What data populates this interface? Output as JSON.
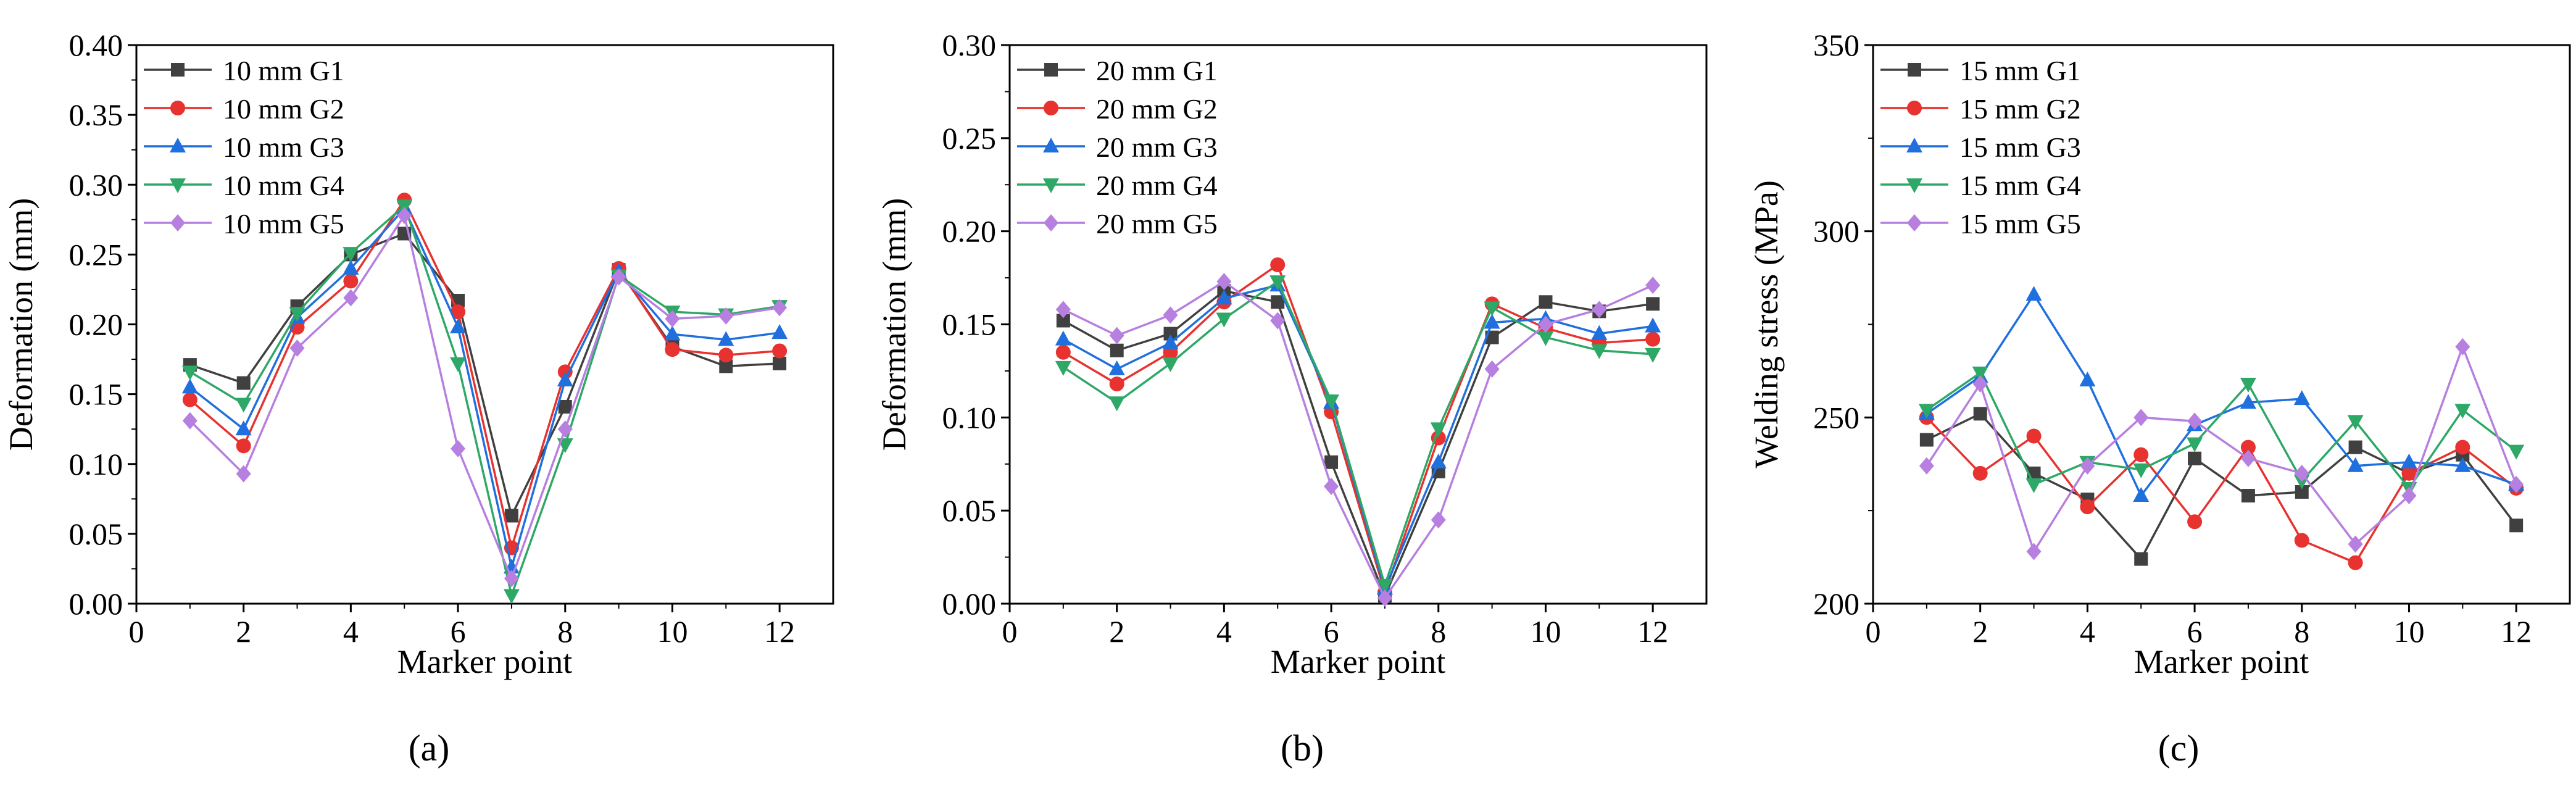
{
  "chart_data": [
    {
      "type": "line",
      "panel_label": "(a)",
      "xlabel": "Marker point",
      "ylabel": "Deformation (mm)",
      "xlim": [
        0,
        13
      ],
      "ylim": [
        0,
        0.4
      ],
      "xticks": [
        0,
        2,
        4,
        6,
        8,
        10,
        12
      ],
      "yticks": [
        0,
        0.05,
        0.1,
        0.15,
        0.2,
        0.25,
        0.3,
        0.35,
        0.4
      ],
      "ytick_labels": [
        "0.00",
        "0.05",
        "0.10",
        "0.15",
        "0.20",
        "0.25",
        "0.30",
        "0.35",
        "0.40"
      ],
      "legend_position": "top-left",
      "x": [
        1,
        2,
        3,
        4,
        5,
        6,
        7,
        8,
        9,
        10,
        11,
        12
      ],
      "series": [
        {
          "name": "10 mm G1",
          "color": "#404040",
          "marker": "square",
          "values": [
            0.171,
            0.158,
            0.213,
            0.25,
            0.265,
            0.217,
            0.063,
            0.141,
            0.239,
            0.184,
            0.17,
            0.172
          ]
        },
        {
          "name": "10 mm G2",
          "color": "#e8322f",
          "marker": "circle",
          "values": [
            0.146,
            0.113,
            0.198,
            0.231,
            0.289,
            0.209,
            0.04,
            0.166,
            0.24,
            0.182,
            0.178,
            0.181
          ]
        },
        {
          "name": "10 mm G3",
          "color": "#1f6fde",
          "marker": "triangle-up",
          "values": [
            0.155,
            0.125,
            0.205,
            0.24,
            0.283,
            0.198,
            0.026,
            0.16,
            0.238,
            0.193,
            0.189,
            0.194
          ]
        },
        {
          "name": "10 mm G4",
          "color": "#2ea866",
          "marker": "triangle-down",
          "values": [
            0.166,
            0.143,
            0.208,
            0.251,
            0.285,
            0.172,
            0.006,
            0.114,
            0.235,
            0.209,
            0.207,
            0.213
          ]
        },
        {
          "name": "10 mm G5",
          "color": "#b77fe0",
          "marker": "diamond",
          "values": [
            0.131,
            0.093,
            0.183,
            0.219,
            0.278,
            0.111,
            0.018,
            0.125,
            0.234,
            0.204,
            0.206,
            0.212
          ]
        }
      ]
    },
    {
      "type": "line",
      "panel_label": "(b)",
      "xlabel": "Marker point",
      "ylabel": "Deformation (mm)",
      "xlim": [
        0,
        13
      ],
      "ylim": [
        0,
        0.3
      ],
      "xticks": [
        0,
        2,
        4,
        6,
        8,
        10,
        12
      ],
      "yticks": [
        0,
        0.05,
        0.1,
        0.15,
        0.2,
        0.25,
        0.3
      ],
      "ytick_labels": [
        "0.00",
        "0.05",
        "0.10",
        "0.15",
        "0.20",
        "0.25",
        "0.30"
      ],
      "legend_position": "top-left",
      "x": [
        1,
        2,
        3,
        4,
        5,
        6,
        7,
        8,
        9,
        10,
        11,
        12
      ],
      "series": [
        {
          "name": "20 mm G1",
          "color": "#404040",
          "marker": "square",
          "values": [
            0.152,
            0.136,
            0.145,
            0.168,
            0.162,
            0.076,
            0.004,
            0.071,
            0.143,
            0.162,
            0.157,
            0.161
          ]
        },
        {
          "name": "20 mm G2",
          "color": "#e8322f",
          "marker": "circle",
          "values": [
            0.135,
            0.118,
            0.135,
            0.162,
            0.182,
            0.103,
            0.006,
            0.089,
            0.161,
            0.148,
            0.14,
            0.142
          ]
        },
        {
          "name": "20 mm G3",
          "color": "#1f6fde",
          "marker": "triangle-up",
          "values": [
            0.142,
            0.126,
            0.14,
            0.164,
            0.171,
            0.108,
            0.008,
            0.076,
            0.151,
            0.153,
            0.145,
            0.149
          ]
        },
        {
          "name": "20 mm G4",
          "color": "#2ea866",
          "marker": "triangle-down",
          "values": [
            0.127,
            0.108,
            0.129,
            0.153,
            0.173,
            0.109,
            0.01,
            0.094,
            0.159,
            0.143,
            0.136,
            0.134
          ]
        },
        {
          "name": "20 mm G5",
          "color": "#b77fe0",
          "marker": "diamond",
          "values": [
            0.158,
            0.144,
            0.155,
            0.173,
            0.152,
            0.063,
            0.003,
            0.045,
            0.126,
            0.15,
            0.158,
            0.171
          ]
        }
      ]
    },
    {
      "type": "line",
      "panel_label": "(c)",
      "xlabel": "Marker point",
      "ylabel": "Welding stress (MPa)",
      "xlim": [
        0,
        13
      ],
      "ylim": [
        200,
        350
      ],
      "xticks": [
        0,
        2,
        4,
        6,
        8,
        10,
        12
      ],
      "yticks": [
        200,
        250,
        300,
        350
      ],
      "ytick_labels": [
        "200",
        "250",
        "300",
        "350"
      ],
      "legend_position": "top-left",
      "x": [
        1,
        2,
        3,
        4,
        5,
        6,
        7,
        8,
        9,
        10,
        11,
        12
      ],
      "series": [
        {
          "name": "15 mm G1",
          "color": "#404040",
          "marker": "square",
          "values": [
            244,
            251,
            235,
            228,
            212,
            239,
            229,
            230,
            242,
            235,
            240,
            221
          ]
        },
        {
          "name": "15 mm G2",
          "color": "#e8322f",
          "marker": "circle",
          "values": [
            250,
            235,
            245,
            226,
            240,
            222,
            242,
            217,
            211,
            235,
            242,
            231
          ]
        },
        {
          "name": "15 mm G3",
          "color": "#1f6fde",
          "marker": "triangle-up",
          "values": [
            251,
            261,
            283,
            260,
            229,
            248,
            254,
            255,
            237,
            238,
            237,
            232
          ]
        },
        {
          "name": "15 mm G4",
          "color": "#2ea866",
          "marker": "triangle-down",
          "values": [
            252,
            262,
            232,
            238,
            236,
            243,
            259,
            233,
            249,
            231,
            252,
            241
          ]
        },
        {
          "name": "15 mm G5",
          "color": "#b77fe0",
          "marker": "diamond",
          "values": [
            237,
            259,
            214,
            237,
            250,
            249,
            239,
            235,
            216,
            229,
            269,
            232
          ]
        }
      ]
    }
  ]
}
